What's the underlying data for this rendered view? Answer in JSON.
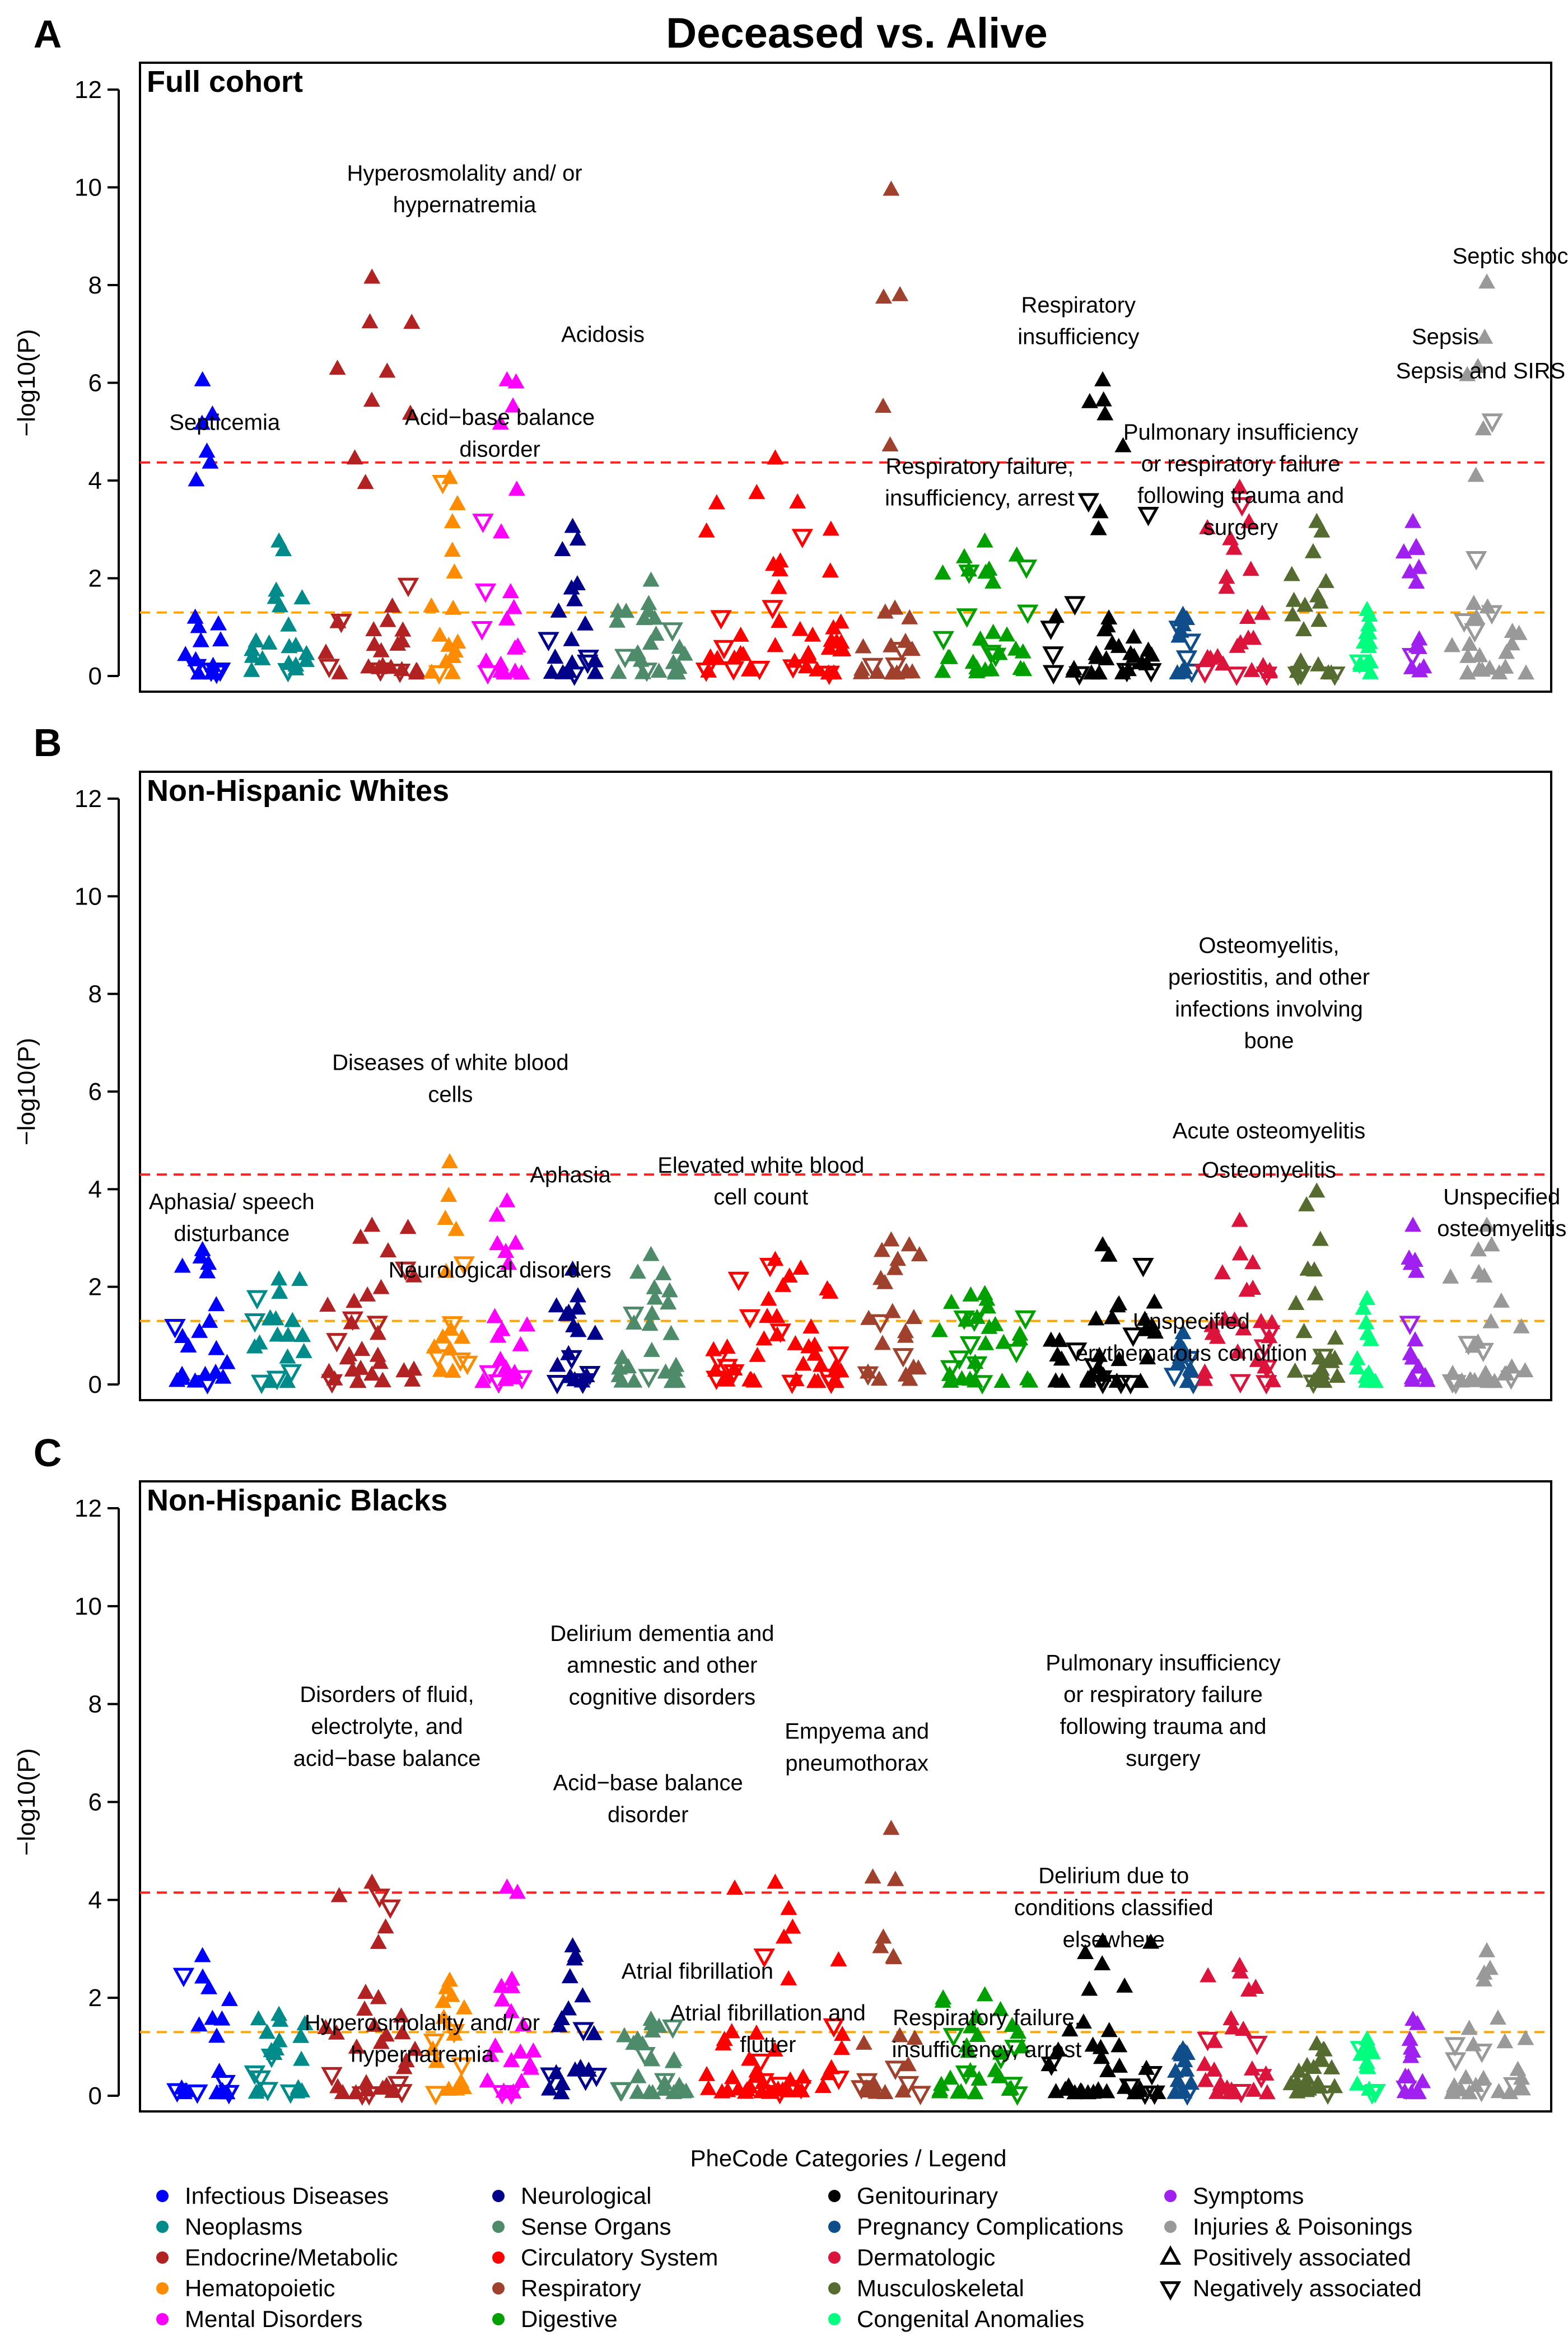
{
  "title": "Deceased vs. Alive",
  "legend": {
    "title": "PheCode Categories / Legend",
    "categories": [
      {
        "name": "Infectious Diseases",
        "color": "#0000FF"
      },
      {
        "name": "Neoplasms",
        "color": "#008B8B"
      },
      {
        "name": "Endocrine/Metabolic",
        "color": "#B22222"
      },
      {
        "name": "Hematopoietic",
        "color": "#FF8C00"
      },
      {
        "name": "Mental Disorders",
        "color": "#FF00FF"
      },
      {
        "name": "Neurological",
        "color": "#00008B"
      },
      {
        "name": "Sense Organs",
        "color": "#4E8B6B"
      },
      {
        "name": "Circulatory System",
        "color": "#FF0000"
      },
      {
        "name": "Respiratory",
        "color": "#A0412D"
      },
      {
        "name": "Digestive",
        "color": "#00A000"
      },
      {
        "name": "Genitourinary",
        "color": "#000000"
      },
      {
        "name": "Pregnancy Complications",
        "color": "#104E8B"
      },
      {
        "name": "Dermatologic",
        "color": "#DC143C"
      },
      {
        "name": "Musculoskeletal",
        "color": "#556B2F"
      },
      {
        "name": "Congenital Anomalies",
        "color": "#00FF7F"
      },
      {
        "name": "Symptoms",
        "color": "#A020F0"
      },
      {
        "name": "Injuries & Poisonings",
        "color": "#999999"
      }
    ],
    "shapes": [
      {
        "name": "Positively associated",
        "shape": "up"
      },
      {
        "name": "Negatively associated",
        "shape": "down"
      }
    ]
  },
  "chart_data": [
    {
      "type": "scatter",
      "panel_letter": "A",
      "title": "Full cohort",
      "ylabel": "−log10(P)",
      "ylim": [
        0,
        12
      ],
      "yticks": [
        "0",
        "2",
        "4",
        "6",
        "8",
        "10",
        "12"
      ],
      "bonferroni_line": 4.37,
      "nominal_line": 1.3,
      "max_by_category": [
        6.0,
        2.7,
        8.1,
        4.0,
        6.0,
        3.0,
        1.9,
        4.4,
        9.9,
        2.7,
        6.0,
        1.2,
        3.8,
        3.1,
        1.3,
        3.1,
        8.0
      ],
      "annotations": [
        {
          "text": "Hyperosmolality and/ or",
          "cx": 0.23,
          "y": 10.3
        },
        {
          "text": "hypernatremia",
          "cx": 0.23,
          "y": 9.65
        },
        {
          "text": "Acidosis",
          "cx": 0.328,
          "y": 7.0
        },
        {
          "text": "Septicemia",
          "cx": 0.06,
          "y": 5.2
        },
        {
          "text": "Acid−base balance",
          "cx": 0.255,
          "y": 5.3
        },
        {
          "text": "disorder",
          "cx": 0.255,
          "y": 4.65
        },
        {
          "text": "Respiratory failure,",
          "cx": 0.595,
          "y": 4.3
        },
        {
          "text": "insufficiency, arrest",
          "cx": 0.595,
          "y": 3.65
        },
        {
          "text": "Respiratory",
          "cx": 0.665,
          "y": 7.6
        },
        {
          "text": "insufficiency",
          "cx": 0.665,
          "y": 6.95
        },
        {
          "text": "Pulmonary insufficiency",
          "cx": 0.78,
          "y": 5.0
        },
        {
          "text": "or respiratory failure",
          "cx": 0.78,
          "y": 4.35
        },
        {
          "text": "following trauma and",
          "cx": 0.78,
          "y": 3.7
        },
        {
          "text": "surgery",
          "cx": 0.78,
          "y": 3.05
        },
        {
          "text": "Septic shock",
          "cx": 0.975,
          "y": 8.6
        },
        {
          "text": "Sepsis",
          "cx": 0.925,
          "y": 6.95
        },
        {
          "text": "Sepsis and SIRS",
          "cx": 0.95,
          "y": 6.25
        }
      ]
    },
    {
      "type": "scatter",
      "panel_letter": "B",
      "title": "Non-Hispanic Whites",
      "ylabel": "−log10(P)",
      "ylim": [
        0,
        12
      ],
      "yticks": [
        "0",
        "2",
        "4",
        "6",
        "8",
        "10",
        "12"
      ],
      "bonferroni_line": 4.3,
      "nominal_line": 1.3,
      "max_by_category": [
        2.7,
        2.1,
        3.2,
        4.5,
        3.7,
        2.3,
        2.6,
        2.5,
        2.9,
        1.8,
        2.8,
        1.0,
        3.3,
        3.9,
        1.7,
        3.2,
        3.2
      ],
      "annotations": [
        {
          "text": "Diseases of white blood",
          "cx": 0.22,
          "y": 6.6
        },
        {
          "text": "cells",
          "cx": 0.22,
          "y": 5.95
        },
        {
          "text": "Aphasia",
          "cx": 0.305,
          "y": 4.3
        },
        {
          "text": "Aphasia/ speech",
          "cx": 0.065,
          "y": 3.75
        },
        {
          "text": "disturbance",
          "cx": 0.065,
          "y": 3.1
        },
        {
          "text": "Neurological disorders",
          "cx": 0.255,
          "y": 2.35
        },
        {
          "text": "Elevated white blood",
          "cx": 0.44,
          "y": 4.5
        },
        {
          "text": "cell count",
          "cx": 0.44,
          "y": 3.85
        },
        {
          "text": "Osteomyelitis,",
          "cx": 0.8,
          "y": 9.0
        },
        {
          "text": "periostitis, and other",
          "cx": 0.8,
          "y": 8.35
        },
        {
          "text": "infections involving",
          "cx": 0.8,
          "y": 7.7
        },
        {
          "text": "bone",
          "cx": 0.8,
          "y": 7.05
        },
        {
          "text": "Acute osteomyelitis",
          "cx": 0.8,
          "y": 5.2
        },
        {
          "text": "Osteomyelitis",
          "cx": 0.8,
          "y": 4.4
        },
        {
          "text": "Unspecified",
          "cx": 0.965,
          "y": 3.85
        },
        {
          "text": "osteomyelitis",
          "cx": 0.965,
          "y": 3.2
        },
        {
          "text": "Unspecified",
          "cx": 0.745,
          "y": 1.3
        },
        {
          "text": "erythematous condition",
          "cx": 0.745,
          "y": 0.65
        }
      ]
    },
    {
      "type": "scatter",
      "panel_letter": "C",
      "title": "Non-Hispanic Blacks",
      "ylabel": "−log10(P)",
      "ylim": [
        0,
        12
      ],
      "yticks": [
        "0",
        "2",
        "4",
        "6",
        "8",
        "10",
        "12"
      ],
      "bonferroni_line": 4.15,
      "nominal_line": 1.3,
      "max_by_category": [
        2.8,
        1.6,
        4.3,
        2.3,
        4.2,
        3.0,
        1.5,
        4.3,
        5.4,
        2.0,
        3.1,
        0.9,
        2.6,
        1.0,
        1.1,
        1.5,
        2.9
      ],
      "annotations": [
        {
          "text": "Delirium dementia and",
          "cx": 0.37,
          "y": 9.45
        },
        {
          "text": "amnestic and other",
          "cx": 0.37,
          "y": 8.8
        },
        {
          "text": "cognitive disorders",
          "cx": 0.37,
          "y": 8.15
        },
        {
          "text": "Disorders of fluid,",
          "cx": 0.175,
          "y": 8.2
        },
        {
          "text": "electrolyte, and",
          "cx": 0.175,
          "y": 7.55
        },
        {
          "text": "acid−base balance",
          "cx": 0.175,
          "y": 6.9
        },
        {
          "text": "Empyema and",
          "cx": 0.508,
          "y": 7.45
        },
        {
          "text": "pneumothorax",
          "cx": 0.508,
          "y": 6.8
        },
        {
          "text": "Acid−base balance",
          "cx": 0.36,
          "y": 6.4
        },
        {
          "text": "disorder",
          "cx": 0.36,
          "y": 5.75
        },
        {
          "text": "Pulmonary insufficiency",
          "cx": 0.725,
          "y": 8.85
        },
        {
          "text": "or respiratory failure",
          "cx": 0.725,
          "y": 8.2
        },
        {
          "text": "following trauma and",
          "cx": 0.725,
          "y": 7.55
        },
        {
          "text": "surgery",
          "cx": 0.725,
          "y": 6.9
        },
        {
          "text": "Delirium due to",
          "cx": 0.69,
          "y": 4.5
        },
        {
          "text": "conditions classified",
          "cx": 0.69,
          "y": 3.85
        },
        {
          "text": "elsewhere",
          "cx": 0.69,
          "y": 3.2
        },
        {
          "text": "Atrial fibrillation",
          "cx": 0.395,
          "y": 2.55
        },
        {
          "text": "Atrial fibrillation and",
          "cx": 0.445,
          "y": 1.7
        },
        {
          "text": "flutter",
          "cx": 0.445,
          "y": 1.05
        },
        {
          "text": "Respiratory failure,",
          "cx": 0.6,
          "y": 1.6
        },
        {
          "text": "insufficiency, arrest",
          "cx": 0.6,
          "y": 0.95
        },
        {
          "text": "Hyperosmolality and/ or",
          "cx": 0.2,
          "y": 1.5
        },
        {
          "text": "hypernatremia",
          "cx": 0.2,
          "y": 0.85
        }
      ]
    }
  ]
}
